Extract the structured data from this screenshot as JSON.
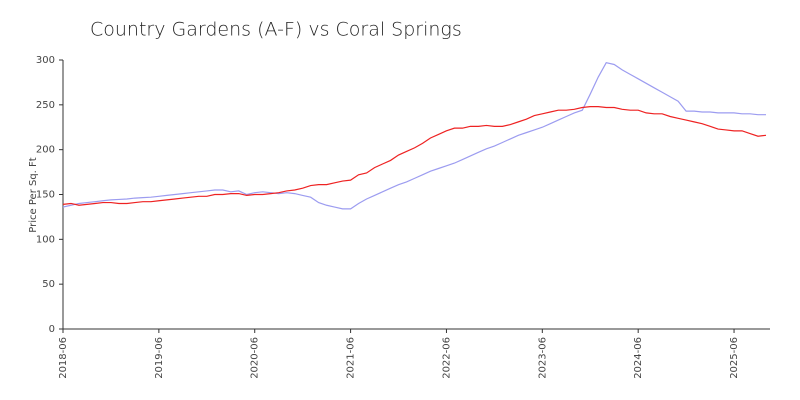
{
  "chart_data": {
    "type": "line",
    "title": "Country Gardens (A-F) vs Coral Springs",
    "y_label": "Price Per Sq. Ft",
    "x": [
      "2018-06",
      "2018-07",
      "2018-08",
      "2018-09",
      "2018-10",
      "2018-11",
      "2018-12",
      "2019-01",
      "2019-02",
      "2019-03",
      "2019-04",
      "2019-05",
      "2019-06",
      "2019-07",
      "2019-08",
      "2019-09",
      "2019-10",
      "2019-11",
      "2019-12",
      "2020-01",
      "2020-02",
      "2020-03",
      "2020-04",
      "2020-05",
      "2020-06",
      "2020-07",
      "2020-08",
      "2020-09",
      "2020-10",
      "2020-11",
      "2020-12",
      "2021-01",
      "2021-02",
      "2021-03",
      "2021-04",
      "2021-05",
      "2021-06",
      "2021-07",
      "2021-08",
      "2021-09",
      "2021-10",
      "2021-11",
      "2021-12",
      "2022-01",
      "2022-02",
      "2022-03",
      "2022-04",
      "2022-05",
      "2022-06",
      "2022-07",
      "2022-08",
      "2022-09",
      "2022-10",
      "2022-11",
      "2022-12",
      "2023-01",
      "2023-02",
      "2023-03",
      "2023-04",
      "2023-05",
      "2023-06",
      "2023-07",
      "2023-08",
      "2023-09",
      "2023-10",
      "2023-11",
      "2023-12",
      "2024-01",
      "2024-02",
      "2024-03",
      "2024-04",
      "2024-05",
      "2024-06",
      "2024-07",
      "2024-08",
      "2024-09",
      "2024-10",
      "2024-11",
      "2024-12",
      "2025-01",
      "2025-02",
      "2025-03",
      "2025-04",
      "2025-05",
      "2025-06",
      "2025-07",
      "2025-08",
      "2025-09",
      "2025-10"
    ],
    "series": [
      {
        "color": "#9c9cf0",
        "values": [
          136,
          138,
          140,
          141,
          142,
          143,
          144,
          144.5,
          145,
          146,
          146.5,
          147,
          148,
          149,
          150,
          151,
          152,
          153,
          154,
          155,
          155,
          153,
          154,
          150,
          152,
          153,
          152,
          151,
          152,
          151,
          149,
          147,
          141,
          138,
          136,
          134,
          134,
          140,
          145,
          149,
          153,
          157,
          161,
          164,
          168,
          172,
          176,
          179,
          182,
          185,
          189,
          193,
          197,
          201,
          204,
          208,
          212,
          216,
          219,
          222,
          225,
          229,
          233,
          237,
          241,
          244,
          262,
          281,
          297,
          295,
          289,
          284,
          279,
          274,
          269,
          264,
          259,
          254,
          243,
          243,
          242,
          242,
          241,
          241,
          241,
          240,
          240,
          239,
          239
        ]
      },
      {
        "color": "#ee2222",
        "values": [
          139,
          140,
          138,
          139,
          140,
          141,
          141,
          140,
          140,
          141,
          142,
          142,
          143,
          144,
          145,
          146,
          147,
          148,
          148,
          150,
          150,
          151,
          151,
          149,
          150,
          150,
          151,
          152,
          154,
          155,
          157,
          160,
          161,
          161,
          163,
          165,
          166,
          172,
          174,
          180,
          184,
          188,
          194,
          198,
          202,
          207,
          213,
          217,
          221,
          224,
          224,
          226,
          226,
          227,
          226,
          226,
          228,
          231,
          234,
          238,
          240,
          242,
          244,
          244,
          245,
          247,
          248,
          248,
          247,
          247,
          245,
          244,
          244,
          241,
          240,
          240,
          237,
          235,
          233,
          231,
          229,
          226,
          223,
          222,
          221,
          221,
          218,
          215,
          216
        ]
      }
    ],
    "xticks": [
      "2018-06",
      "2019-06",
      "2020-06",
      "2021-06",
      "2022-06",
      "2023-06",
      "2024-06",
      "2025-06"
    ],
    "ylim": [
      0,
      300
    ],
    "yticks": [
      0,
      50,
      100,
      150,
      200,
      250,
      300
    ],
    "grid": false
  }
}
